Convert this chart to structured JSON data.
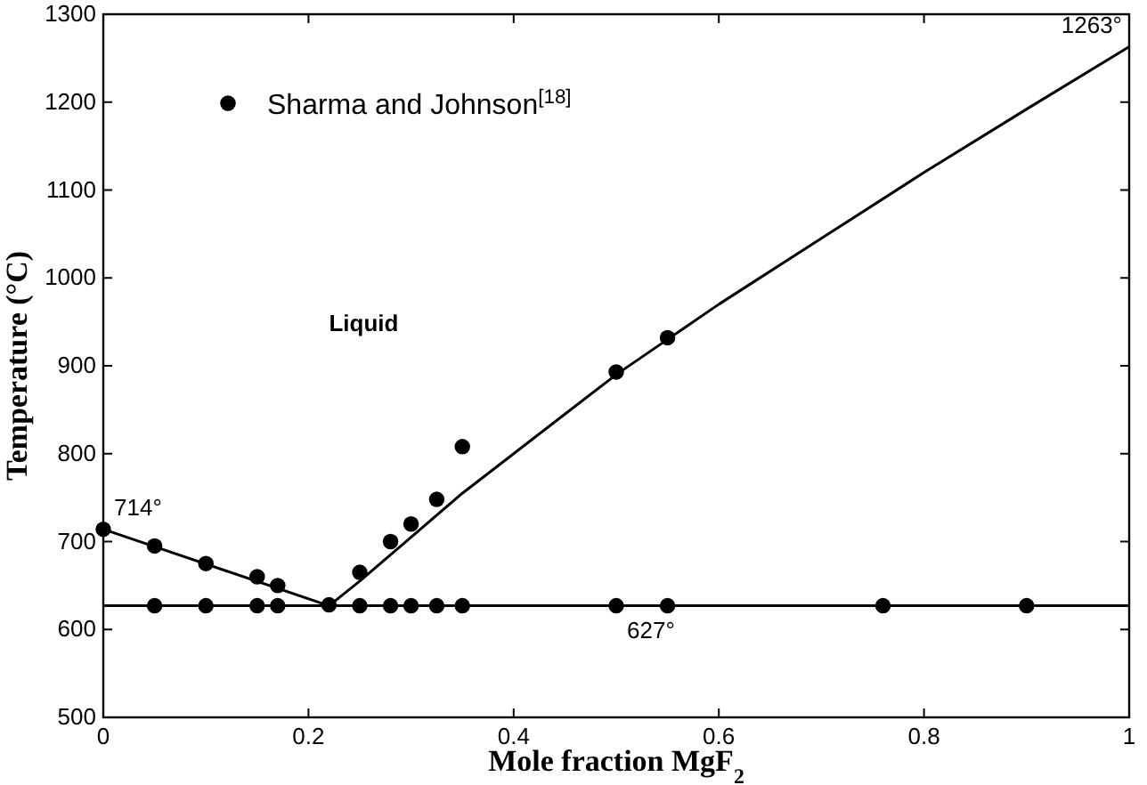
{
  "chart_data": {
    "type": "scatter",
    "xlabel": "Mole fraction MgF$_{2}$",
    "ylabel": "Temperature (°C)",
    "xlim": [
      0,
      1
    ],
    "ylim": [
      500,
      1300
    ],
    "xticks": [
      0,
      0.2,
      0.4,
      0.6,
      0.8,
      1
    ],
    "yticks": [
      500,
      600,
      700,
      800,
      900,
      1000,
      1100,
      1200,
      1300
    ],
    "legend": "top left",
    "grid": false,
    "series": [
      {
        "name": "Sharma and Johnson$^{[18]}$",
        "color": "#000000",
        "marker": "circle",
        "x": [
          0,
          0.05,
          0.1,
          0.15,
          0.17,
          0.22,
          0.25,
          0.28,
          0.3,
          0.325,
          0.35,
          0.5,
          0.55,
          0.05,
          0.1,
          0.15,
          0.17,
          0.25,
          0.28,
          0.3,
          0.325,
          0.35,
          0.5,
          0.55,
          0.76,
          0.9
        ],
        "values": [
          714,
          695,
          675,
          660,
          650,
          628,
          665,
          700,
          720,
          748,
          808,
          893,
          932,
          627,
          627,
          627,
          627,
          627,
          627,
          627,
          627,
          627,
          627,
          627,
          627,
          627
        ]
      },
      {
        "color": "#000000",
        "type": "line",
        "x": [
          0,
          0.22,
          0.25,
          0.3,
          0.35,
          0.4,
          0.45,
          0.5,
          0.6,
          0.7,
          0.8,
          0.9,
          1
        ],
        "values": [
          714,
          627,
          655,
          705,
          755,
          800,
          845,
          890,
          970,
          1045,
          1120,
          1192,
          1263
        ]
      },
      {
        "color": "#000000",
        "type": "line",
        "x": [
          0,
          1
        ],
        "values": [
          627,
          627
        ]
      }
    ],
    "annotations": [
      {
        "text": "714°",
        "x": 0,
        "y": 714
      },
      {
        "text": "1263°",
        "x": 1,
        "y": 1263
      },
      {
        "text": "627°",
        "x": 0.5,
        "y": 627
      },
      "Liquid"
    ]
  }
}
